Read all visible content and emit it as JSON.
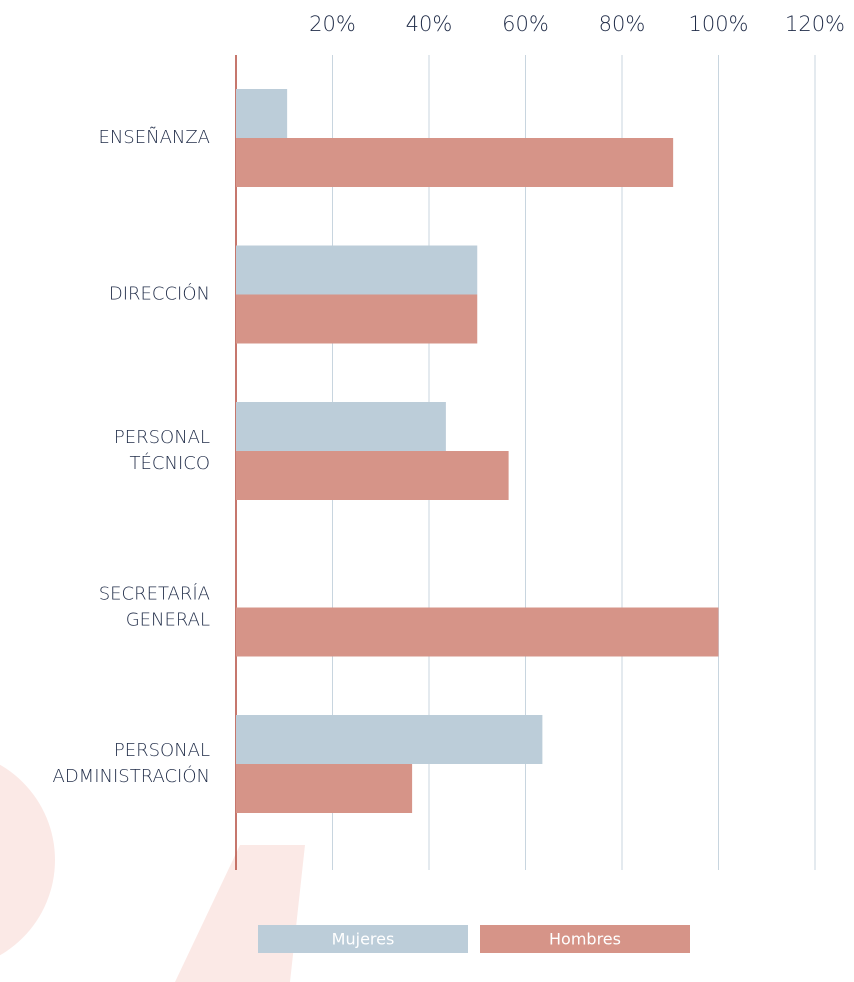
{
  "chart_data": {
    "type": "hbar",
    "categories": [
      "ENSEÑANZA",
      "DIRECCIÓN",
      "PERSONAL TÉCNICO",
      "SECRETARÍA GENERAL",
      "PERSONAL ADMINISTRACIÓN"
    ],
    "series": [
      {
        "name": "Mujeres",
        "color": "#bccdd9",
        "values": [
          10.6,
          50,
          43.5,
          0,
          63.5
        ]
      },
      {
        "name": "Hombres",
        "color": "#d69488",
        "values": [
          90.6,
          50,
          56.5,
          100,
          36.5
        ]
      }
    ],
    "xlim": [
      0,
      120
    ],
    "xticks": [
      {
        "value": 20,
        "label": "20%"
      },
      {
        "value": 40,
        "label": "40%"
      },
      {
        "value": 60,
        "label": "60%"
      },
      {
        "value": 80,
        "label": "80%"
      },
      {
        "value": 100,
        "label": "100%"
      },
      {
        "value": 120,
        "label": "120%"
      }
    ],
    "grid": true
  }
}
